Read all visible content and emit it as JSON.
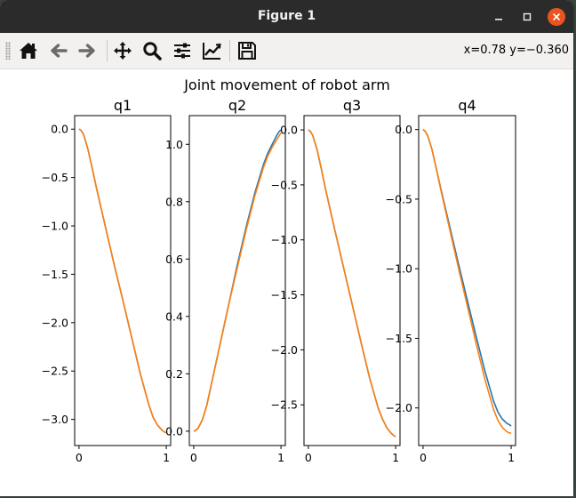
{
  "window": {
    "title": "Figure 1"
  },
  "toolbar": {
    "buttons": [
      {
        "name": "home",
        "icon": "home-icon"
      },
      {
        "name": "back",
        "icon": "arrow-left-icon"
      },
      {
        "name": "forward",
        "icon": "arrow-right-icon"
      },
      {
        "name": "pan",
        "icon": "move-icon"
      },
      {
        "name": "zoom",
        "icon": "magnifier-icon"
      },
      {
        "name": "subplots",
        "icon": "sliders-icon"
      },
      {
        "name": "axes",
        "icon": "line-chart-icon"
      },
      {
        "name": "save",
        "icon": "floppy-disk-icon"
      }
    ],
    "coords": "x=0.78 y=−0.360"
  },
  "figure": {
    "suptitle": "Joint movement of robot arm"
  },
  "colors": {
    "series_1": "#1f77b4",
    "series_2": "#ff7f0e",
    "accent_close": "#e95420"
  },
  "chart_data": [
    {
      "type": "line",
      "title": "q1",
      "xlim": [
        -0.05,
        1.05
      ],
      "ylim": [
        -3.27,
        0.14
      ],
      "xticks": [
        {
          "v": 0,
          "label": "0"
        },
        {
          "v": 1,
          "label": "1"
        }
      ],
      "yticks": [
        {
          "v": 0,
          "label": "0.0"
        },
        {
          "v": -0.5,
          "label": "−0.5"
        },
        {
          "v": -1,
          "label": "−1.0"
        },
        {
          "v": -1.5,
          "label": "−1.5"
        },
        {
          "v": -2,
          "label": "−2.0"
        },
        {
          "v": -2.5,
          "label": "−2.5"
        },
        {
          "v": -3,
          "label": "−3.0"
        }
      ],
      "x": [
        0,
        0.02,
        0.05,
        0.1,
        0.15,
        0.2,
        0.3,
        0.4,
        0.5,
        0.6,
        0.7,
        0.8,
        0.85,
        0.9,
        0.95,
        0.98,
        1.0
      ],
      "series": [
        {
          "values": [
            0,
            -0.01,
            -0.05,
            -0.2,
            -0.4,
            -0.61,
            -1.0,
            -1.39,
            -1.76,
            -2.14,
            -2.52,
            -2.85,
            -2.98,
            -3.06,
            -3.11,
            -3.13,
            -3.14
          ]
        },
        {
          "values": [
            0,
            -0.01,
            -0.05,
            -0.2,
            -0.4,
            -0.61,
            -1.0,
            -1.39,
            -1.76,
            -2.14,
            -2.52,
            -2.85,
            -2.98,
            -3.06,
            -3.11,
            -3.13,
            -3.14
          ]
        }
      ]
    },
    {
      "type": "line",
      "title": "q2",
      "xlim": [
        -0.05,
        1.05
      ],
      "ylim": [
        -0.05,
        1.1
      ],
      "xticks": [
        {
          "v": 0,
          "label": "0"
        },
        {
          "v": 1,
          "label": "1"
        }
      ],
      "yticks": [
        {
          "v": 0,
          "label": "0.0"
        },
        {
          "v": 0.2,
          "label": "0.2"
        },
        {
          "v": 0.4,
          "label": "0.4"
        },
        {
          "v": 0.6,
          "label": "0.6"
        },
        {
          "v": 0.8,
          "label": "0.8"
        },
        {
          "v": 1,
          "label": "1.0"
        }
      ],
      "x": [
        0,
        0.02,
        0.05,
        0.1,
        0.15,
        0.2,
        0.3,
        0.4,
        0.5,
        0.6,
        0.7,
        0.8,
        0.85,
        0.9,
        0.95,
        0.98,
        1.0
      ],
      "series": [
        {
          "values": [
            0,
            0.002,
            0.01,
            0.04,
            0.09,
            0.16,
            0.3,
            0.44,
            0.58,
            0.71,
            0.83,
            0.93,
            0.97,
            1.0,
            1.03,
            1.045,
            1.05
          ]
        },
        {
          "values": [
            0,
            0.002,
            0.01,
            0.04,
            0.09,
            0.16,
            0.3,
            0.44,
            0.57,
            0.7,
            0.82,
            0.92,
            0.96,
            0.99,
            1.015,
            1.03,
            1.04
          ]
        }
      ]
    },
    {
      "type": "line",
      "title": "q3",
      "xlim": [
        -0.05,
        1.05
      ],
      "ylim": [
        -2.87,
        0.13
      ],
      "xticks": [
        {
          "v": 0,
          "label": "0"
        },
        {
          "v": 1,
          "label": "1"
        }
      ],
      "yticks": [
        {
          "v": 0,
          "label": "0.0"
        },
        {
          "v": -0.5,
          "label": "−0.5"
        },
        {
          "v": -1,
          "label": "−1.0"
        },
        {
          "v": -1.5,
          "label": "−1.5"
        },
        {
          "v": -2,
          "label": "−2.0"
        },
        {
          "v": -2.5,
          "label": "−2.5"
        }
      ],
      "x": [
        0,
        0.02,
        0.05,
        0.1,
        0.15,
        0.2,
        0.3,
        0.4,
        0.5,
        0.6,
        0.7,
        0.8,
        0.85,
        0.9,
        0.95,
        0.98,
        1.0
      ],
      "series": [
        {
          "values": [
            0,
            -0.01,
            -0.05,
            -0.18,
            -0.36,
            -0.55,
            -0.9,
            -1.24,
            -1.58,
            -1.92,
            -2.25,
            -2.53,
            -2.63,
            -2.71,
            -2.76,
            -2.78,
            -2.79
          ]
        },
        {
          "values": [
            0,
            -0.01,
            -0.05,
            -0.18,
            -0.36,
            -0.55,
            -0.9,
            -1.24,
            -1.58,
            -1.92,
            -2.25,
            -2.53,
            -2.63,
            -2.71,
            -2.76,
            -2.78,
            -2.79
          ]
        }
      ]
    },
    {
      "type": "line",
      "title": "q4",
      "xlim": [
        -0.05,
        1.05
      ],
      "ylim": [
        -2.27,
        0.1
      ],
      "xticks": [
        {
          "v": 0,
          "label": "0"
        },
        {
          "v": 1,
          "label": "1"
        }
      ],
      "yticks": [
        {
          "v": 0,
          "label": "0.0"
        },
        {
          "v": -0.5,
          "label": "−0.5"
        },
        {
          "v": -1,
          "label": "−1.0"
        },
        {
          "v": -1.5,
          "label": "−1.5"
        },
        {
          "v": -2,
          "label": "−2.0"
        }
      ],
      "x": [
        0,
        0.02,
        0.05,
        0.1,
        0.15,
        0.2,
        0.3,
        0.4,
        0.5,
        0.6,
        0.7,
        0.8,
        0.85,
        0.9,
        0.95,
        0.98,
        1.0
      ],
      "series": [
        {
          "values": [
            0,
            -0.01,
            -0.04,
            -0.14,
            -0.28,
            -0.42,
            -0.69,
            -0.96,
            -1.22,
            -1.48,
            -1.73,
            -1.95,
            -2.03,
            -2.08,
            -2.11,
            -2.12,
            -2.13
          ]
        },
        {
          "values": [
            0,
            -0.01,
            -0.04,
            -0.14,
            -0.28,
            -0.43,
            -0.71,
            -0.99,
            -1.26,
            -1.53,
            -1.79,
            -2.01,
            -2.09,
            -2.14,
            -2.17,
            -2.18,
            -2.18
          ]
        }
      ]
    }
  ]
}
